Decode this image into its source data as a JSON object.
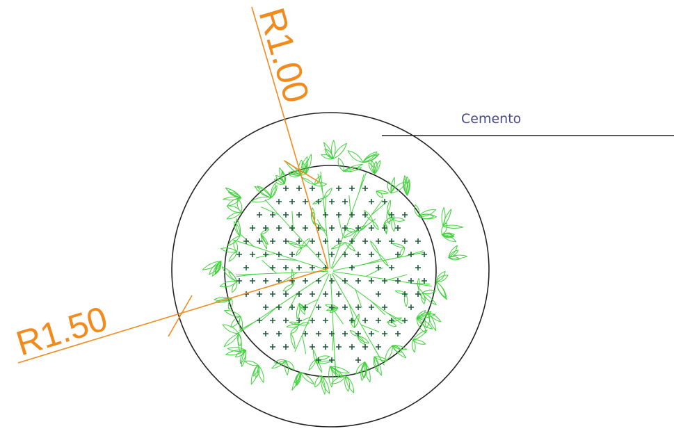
{
  "drawing": {
    "dimension_outer": "R1.50",
    "dimension_inner": "R1.00",
    "material_label": "Cemento"
  },
  "colors": {
    "dimension": "#f28a1c",
    "outline": "#222222",
    "leader": "#222222",
    "label": "#4a4a8a",
    "foliage": "#3fd23a",
    "markers": "#1d5a3a",
    "background": "#ffffff"
  },
  "icons": [
    "plant-symbol-icon",
    "ground-cover-marker-icon"
  ]
}
